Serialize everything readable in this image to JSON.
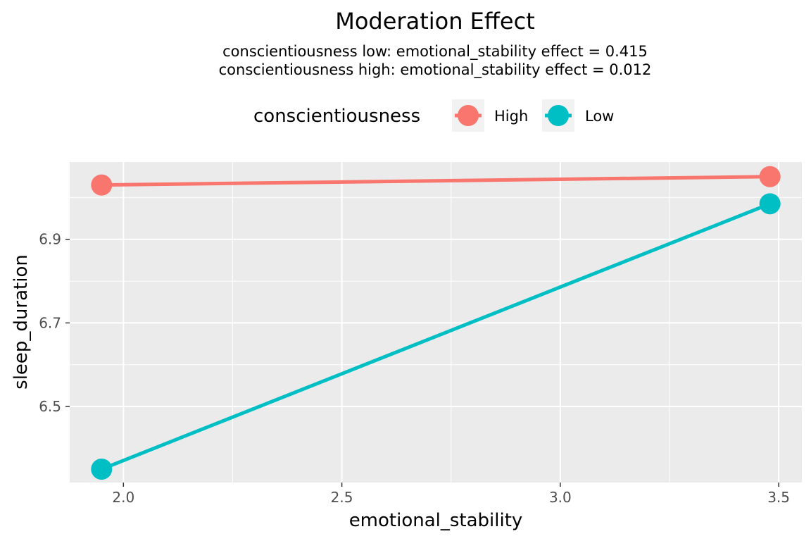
{
  "chart_data": {
    "type": "line",
    "title": "Moderation Effect",
    "subtitle_lines": [
      "conscientiousness low: emotional_stability effect = 0.415",
      "conscientiousness high: emotional_stability effect = 0.012"
    ],
    "xlabel": "emotional_stability",
    "ylabel": "sleep_duration",
    "xlim": [
      1.877,
      3.553
    ],
    "ylim": [
      6.318,
      7.085
    ],
    "x_ticks": [
      2.0,
      2.5,
      3.0,
      3.5
    ],
    "x_tick_labels": [
      "2.0",
      "2.5",
      "3.0",
      "3.5"
    ],
    "y_ticks": [
      6.5,
      6.7,
      6.9
    ],
    "y_tick_labels": [
      "6.5",
      "6.7",
      "6.9"
    ],
    "grid": true,
    "legend": {
      "title": "conscientiousness",
      "placement": "top",
      "entries": [
        "High",
        "Low"
      ]
    },
    "series": [
      {
        "name": "High",
        "color": "#F8766D",
        "x": [
          1.95,
          3.48
        ],
        "y": [
          7.03,
          7.05
        ]
      },
      {
        "name": "Low",
        "color": "#00BFC4",
        "x": [
          1.95,
          3.48
        ],
        "y": [
          6.35,
          6.985
        ]
      }
    ]
  }
}
